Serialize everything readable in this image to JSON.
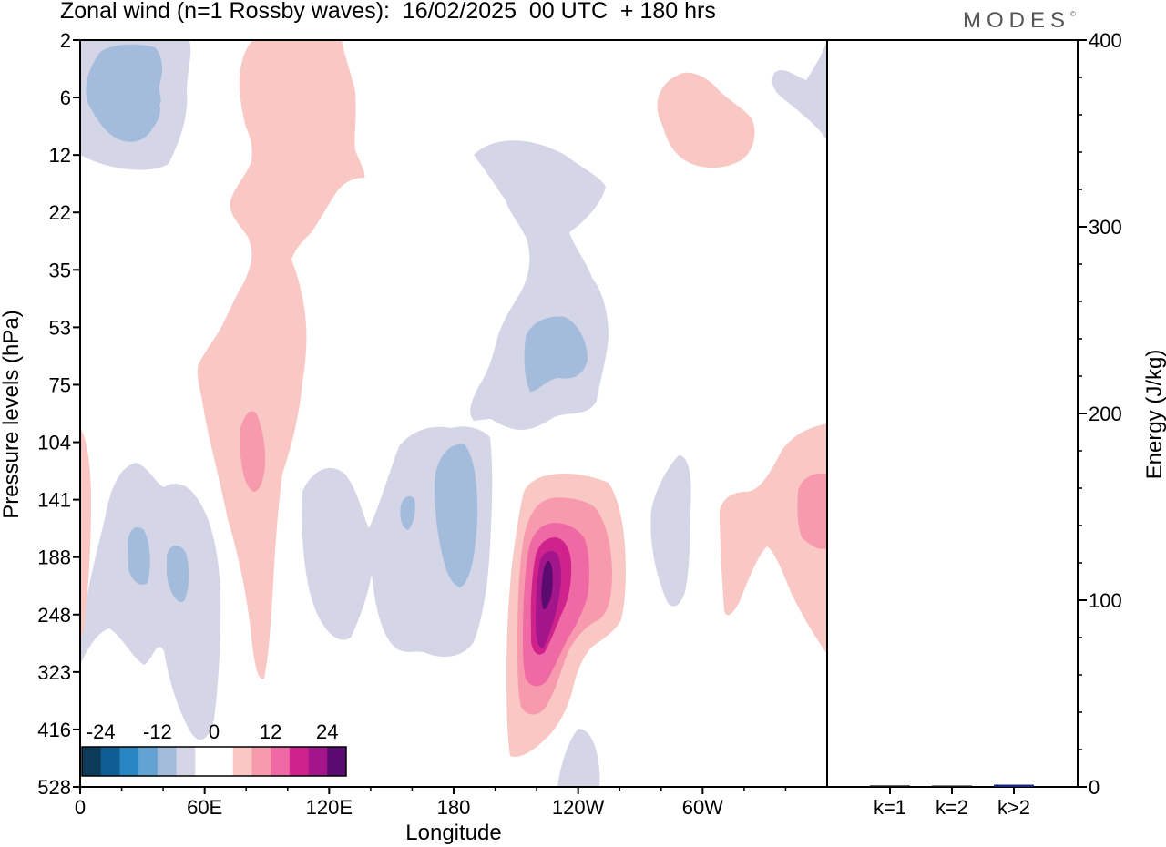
{
  "header": {
    "title": "Zonal wind (n=1 Rossby waves):  16/02/2025  00 UTC  + 180 hrs",
    "brand": "MODES",
    "brand_mark": "©"
  },
  "chart_data": [
    {
      "type": "heatmap",
      "variable": "Zonal wind",
      "xlabel": "Longitude",
      "ylabel": "Pressure levels (hPa)",
      "x_ticks": [
        "0",
        "60E",
        "120E",
        "180",
        "120W",
        "60W"
      ],
      "x_tick_values": [
        0,
        60,
        120,
        180,
        240,
        300
      ],
      "xlim": [
        0,
        360
      ],
      "y_ticks": [
        "2",
        "6",
        "12",
        "22",
        "35",
        "53",
        "75",
        "104",
        "141",
        "188",
        "248",
        "323",
        "416",
        "528"
      ],
      "y_scale": "model levels (non-linear)",
      "colorbar": {
        "labels": [
          "-24",
          "-12",
          "0",
          "12",
          "24"
        ],
        "colors": [
          "#0c3b5a",
          "#0f5e93",
          "#2a86c2",
          "#63a3d2",
          "#a3bcdc",
          "#d4d6e8",
          "#ffffff",
          "#ffffff",
          "#f9c8c4",
          "#f89aae",
          "#ef6aa5",
          "#d0228c",
          "#a3158a",
          "#5b0a6f"
        ]
      },
      "grid": false
    },
    {
      "type": "bar",
      "categories": [
        "k=1",
        "k=2",
        "k>2"
      ],
      "values": [
        0.8,
        0.5,
        1.2
      ],
      "ylabel": "Energy (J/kg)",
      "ylim": [
        0,
        400
      ],
      "y_ticks": [
        "0",
        "100",
        "200",
        "300",
        "400"
      ],
      "colors": [
        "#111111",
        "#111111",
        "#1a237e"
      ]
    }
  ]
}
